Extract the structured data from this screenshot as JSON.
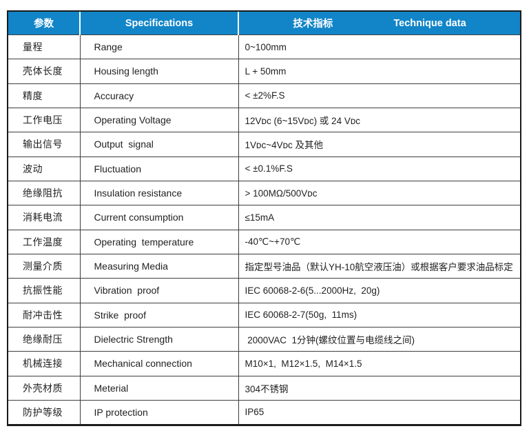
{
  "header": {
    "param": "参数",
    "specifications": "Specifications",
    "technique_cn": "技术指标",
    "technique_en": "Technique data"
  },
  "colors": {
    "header_bg": "#1185c8",
    "header_text": "#ffffff",
    "outer_border": "#1a1a1a",
    "grid_line": "#3d3d3d",
    "body_text": "#1f1f1f"
  },
  "rows": [
    {
      "cn": "量程",
      "en": "Range",
      "value": "0~100mm"
    },
    {
      "cn": "壳体长度",
      "en": "Housing length",
      "value": "L + 50mm"
    },
    {
      "cn": "精度",
      "en": "Accuracy",
      "value": "< ±2%F.S"
    },
    {
      "cn": "工作电压",
      "en": "Operating Voltage",
      "value": "12Vᴅᴄ (6~15Vᴅᴄ) 或 24 Vᴅᴄ"
    },
    {
      "cn": "输出信号",
      "en": "Output  signal",
      "value": "1Vᴅᴄ~4Vᴅᴄ 及其他"
    },
    {
      "cn": "波动",
      "en": "Fluctuation",
      "value": "< ±0.1%F.S"
    },
    {
      "cn": "绝缘阻抗",
      "en": "Insulation resistance",
      "value": "> 100MΩ/500Vᴅᴄ"
    },
    {
      "cn": "消耗电流",
      "en": "Current consumption",
      "value": "≤15mA"
    },
    {
      "cn": "工作温度",
      "en": "Operating  temperature",
      "value": "-40℃~+70℃"
    },
    {
      "cn": "测量介质",
      "en": "Measuring Media",
      "value": "指定型号油品（默认YH-10航空液压油）或根据客户要求油品标定"
    },
    {
      "cn": "抗振性能",
      "en": "Vibration  proof",
      "value": "IEC 60068-2-6(5...2000Hz,  20g)"
    },
    {
      "cn": "耐冲击性",
      "en": "Strike  proof",
      "value": "IEC 60068-2-7(50g,  11ms)"
    },
    {
      "cn": "绝缘耐压",
      "en": "Dielectric Strength",
      "value": " 2000VAC  1分钟(螺纹位置与电缆线之间)"
    },
    {
      "cn": "机械连接",
      "en": "Mechanical connection",
      "value": "M10×1,  M12×1.5,  M14×1.5"
    },
    {
      "cn": "外壳材质",
      "en": "Meterial",
      "value": "304不锈钢"
    },
    {
      "cn": "防护等级",
      "en": "IP protection",
      "value": "IP65"
    }
  ]
}
